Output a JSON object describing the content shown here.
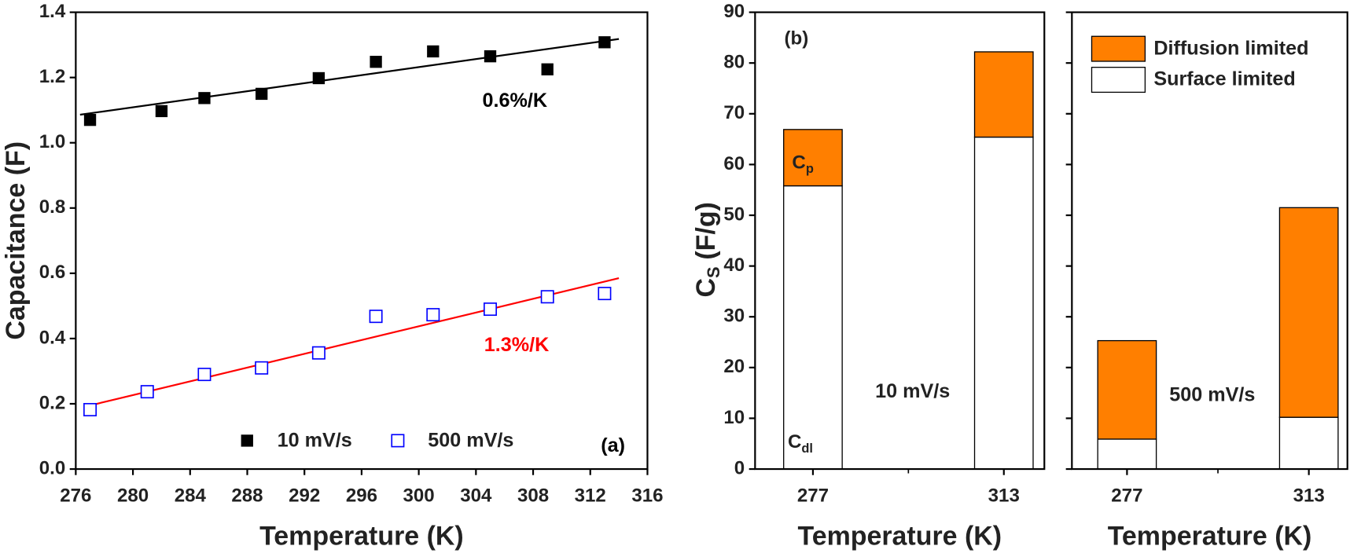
{
  "chart_data": [
    {
      "type": "scatter",
      "xlabel": "Temperature (K)",
      "ylabel": "Capacitance (F)",
      "xlim": [
        276,
        316
      ],
      "ylim": [
        0,
        1.4
      ],
      "xticks": [
        276,
        280,
        284,
        288,
        292,
        296,
        300,
        304,
        308,
        312,
        316
      ],
      "yticks": [
        {
          "value": 0,
          "label": "0.0"
        },
        0.2,
        0.4,
        0.6,
        0.8,
        {
          "value": 1,
          "label": "1.0"
        },
        1.2,
        1.4
      ],
      "series": [
        {
          "name": "10 mV/s",
          "color": "#000000",
          "marker": "filled",
          "x": [
            277,
            282,
            285,
            289,
            293,
            297,
            301,
            305,
            309,
            313
          ],
          "values": [
            1.07,
            1.097,
            1.137,
            1.15,
            1.198,
            1.248,
            1.28,
            1.265,
            1.225,
            1.308
          ],
          "fit": {
            "color": "#000000",
            "x": [
              276.3,
              314
            ],
            "values": [
              1.086,
              1.318
            ]
          }
        },
        {
          "name": "500 mV/s",
          "color": "#0000ff",
          "marker": "open",
          "x": [
            277,
            281,
            285,
            289,
            293,
            297,
            301,
            305,
            309,
            313
          ],
          "values": [
            0.182,
            0.237,
            0.29,
            0.31,
            0.356,
            0.468,
            0.473,
            0.49,
            0.528,
            0.538
          ],
          "fit": {
            "color": "#ff0000",
            "x": [
              277,
              314
            ],
            "values": [
              0.195,
              0.585
            ]
          }
        }
      ],
      "annotations": [
        {
          "text": "0.6%/K",
          "color": "#000000"
        },
        {
          "text": "1.3%/K",
          "color": "#ff0000"
        },
        {
          "text": "(a)",
          "color": "#000000"
        }
      ]
    },
    {
      "type": "stacked-bar",
      "ylabel": {
        "main": "C",
        "sub": "S",
        "rest": "(F/g)"
      },
      "ylim": [
        0,
        90
      ],
      "yticks": [
        0,
        10,
        20,
        30,
        40,
        50,
        60,
        70,
        80,
        90
      ],
      "panels": [
        {
          "label": "10 mV/s",
          "xlabel": "Temperature (K)",
          "categories": [
            "277",
            "313"
          ]
        },
        {
          "label": "500 mV/s",
          "xlabel": "Temperature (K)",
          "categories": [
            "277",
            "313"
          ]
        }
      ],
      "series": [
        {
          "name": "Surface limited",
          "color": "#ffffff",
          "values": [
            [
              55.8,
              65.4
            ],
            [
              5.9,
              10.2
            ]
          ]
        },
        {
          "name": "Diffusion limited",
          "color": "#ff7f00",
          "values": [
            [
              11.1,
              16.8
            ],
            [
              19.4,
              41.3
            ]
          ]
        }
      ],
      "annotations": [
        {
          "text": "(b)"
        },
        {
          "text": "C",
          "sub": "p"
        },
        {
          "text": "C",
          "sub": "dl"
        }
      ]
    }
  ]
}
